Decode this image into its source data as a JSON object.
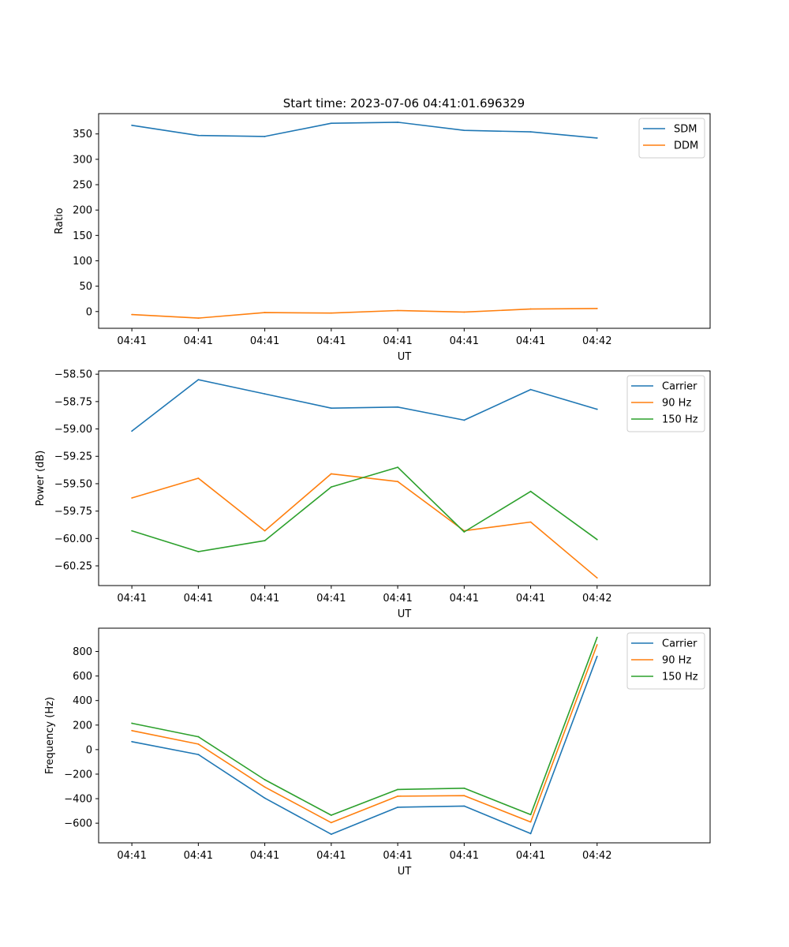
{
  "figure": {
    "title": "Start time: 2023-07-06 04:41:01.696329"
  },
  "chart_data": [
    {
      "type": "line",
      "title": "Start time: 2023-07-06 04:41:01.696329",
      "xlabel": "UT",
      "ylabel": "Ratio",
      "x_tick_labels": [
        "04:41",
        "04:41",
        "04:41",
        "04:41",
        "04:41",
        "04:41",
        "04:41",
        "04:42"
      ],
      "x_index": [
        0,
        1,
        2,
        3,
        4,
        5,
        6,
        7
      ],
      "x_axis_range": [
        -0.5,
        8.7
      ],
      "y_ticks": [
        0,
        50,
        100,
        150,
        200,
        250,
        300,
        350
      ],
      "ylim": [
        -33,
        390
      ],
      "legend_position": "top-right",
      "series": [
        {
          "name": "SDM",
          "color": "#1f77b4",
          "values": [
            367,
            347,
            345,
            371,
            373,
            357,
            354,
            342
          ]
        },
        {
          "name": "DDM",
          "color": "#ff7f0e",
          "values": [
            -6,
            -13,
            -2,
            -3,
            2,
            -1,
            5,
            6
          ]
        }
      ]
    },
    {
      "type": "line",
      "title": "",
      "xlabel": "UT",
      "ylabel": "Power (dB)",
      "x_tick_labels": [
        "04:41",
        "04:41",
        "04:41",
        "04:41",
        "04:41",
        "04:41",
        "04:41",
        "04:42"
      ],
      "x_index": [
        0,
        1,
        2,
        3,
        4,
        5,
        6,
        7
      ],
      "x_axis_range": [
        -0.5,
        8.7
      ],
      "y_ticks": [
        -60.25,
        -60.0,
        -59.75,
        -59.5,
        -59.25,
        -59.0,
        -58.75,
        -58.5
      ],
      "y_tick_labels": [
        "−60.25",
        "−60.00",
        "−59.75",
        "−59.50",
        "−59.25",
        "−59.00",
        "−58.75",
        "−58.50"
      ],
      "ylim": [
        -60.43,
        -58.47
      ],
      "legend_position": "top-right",
      "series": [
        {
          "name": "Carrier",
          "color": "#1f77b4",
          "values": [
            -59.02,
            -58.55,
            -58.68,
            -58.81,
            -58.8,
            -58.92,
            -58.64,
            -58.82
          ]
        },
        {
          "name": "90 Hz",
          "color": "#ff7f0e",
          "values": [
            -59.63,
            -59.45,
            -59.93,
            -59.41,
            -59.48,
            -59.93,
            -59.85,
            -60.36
          ]
        },
        {
          "name": "150 Hz",
          "color": "#2ca02c",
          "values": [
            -59.93,
            -60.12,
            -60.02,
            -59.53,
            -59.35,
            -59.94,
            -59.57,
            -60.01
          ]
        }
      ]
    },
    {
      "type": "line",
      "title": "",
      "xlabel": "UT",
      "ylabel": "Frequency (Hz)",
      "x_tick_labels": [
        "04:41",
        "04:41",
        "04:41",
        "04:41",
        "04:41",
        "04:41",
        "04:41",
        "04:42"
      ],
      "x_index": [
        0,
        1,
        2,
        3,
        4,
        5,
        6,
        7
      ],
      "x_axis_range": [
        -0.5,
        8.7
      ],
      "y_ticks": [
        -600,
        -400,
        -200,
        0,
        200,
        400,
        600,
        800
      ],
      "y_tick_labels": [
        "−600",
        "−400",
        "−200",
        "0",
        "200",
        "400",
        "600",
        "800"
      ],
      "ylim": [
        -760,
        990
      ],
      "legend_position": "top-right",
      "series": [
        {
          "name": "Carrier",
          "color": "#1f77b4",
          "values": [
            65,
            -40,
            -395,
            -690,
            -470,
            -460,
            -685,
            760
          ]
        },
        {
          "name": "90 Hz",
          "color": "#ff7f0e",
          "values": [
            155,
            45,
            -305,
            -595,
            -380,
            -375,
            -590,
            855
          ]
        },
        {
          "name": "150 Hz",
          "color": "#2ca02c",
          "values": [
            215,
            105,
            -245,
            -535,
            -325,
            -315,
            -530,
            915
          ]
        }
      ]
    }
  ]
}
